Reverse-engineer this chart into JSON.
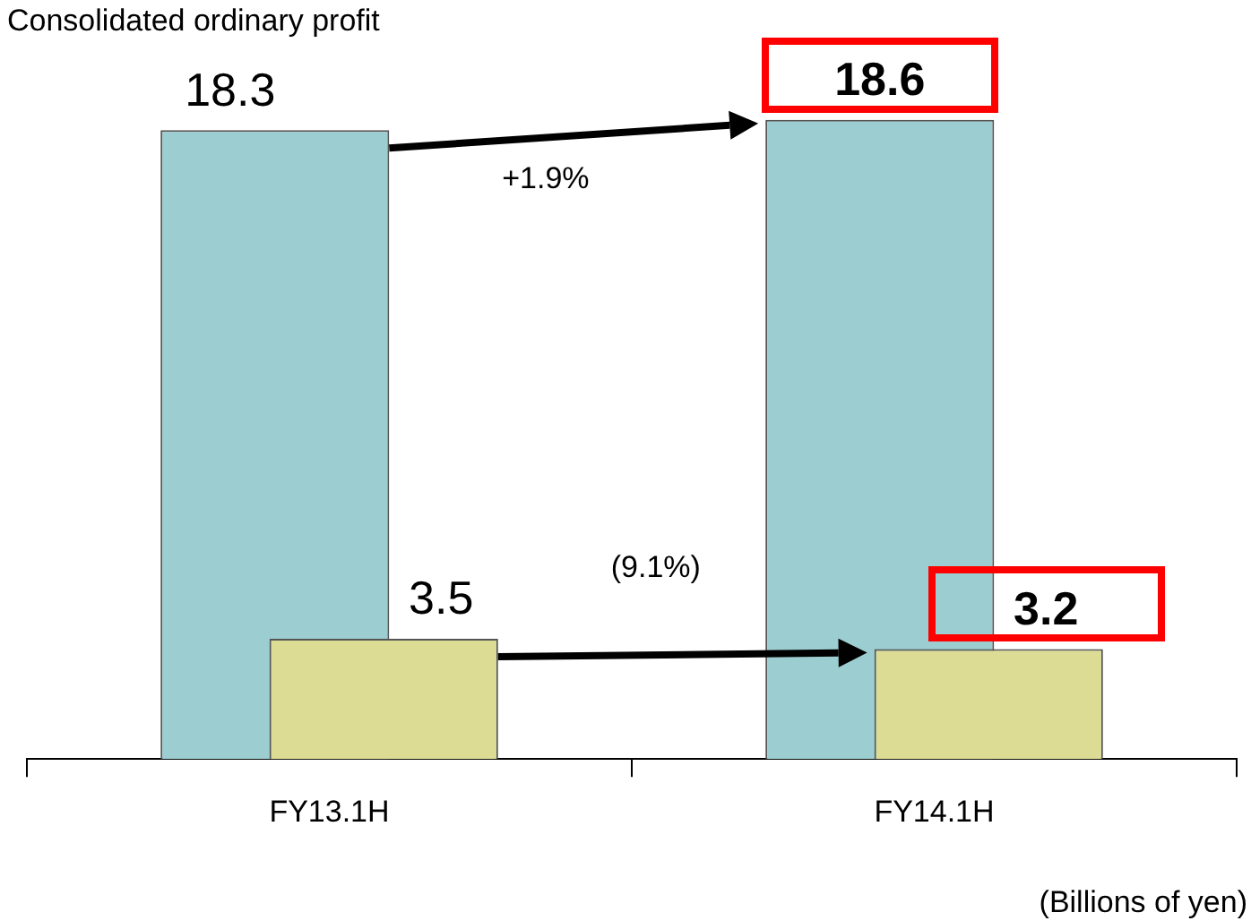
{
  "chart_data": {
    "type": "bar",
    "title": "Consolidated ordinary profit",
    "categories": [
      "FY13.1H",
      "FY14.1H"
    ],
    "series": [
      {
        "color": "#9ccdd0",
        "values": [
          18.3,
          18.6
        ]
      },
      {
        "color": "#dcdc94",
        "values": [
          3.5,
          3.2
        ]
      }
    ],
    "data_labels": true,
    "legend": false,
    "grid": false,
    "annotations": [
      "+1.9%",
      "(9.1%)",
      "(Billions of yen)"
    ]
  }
}
